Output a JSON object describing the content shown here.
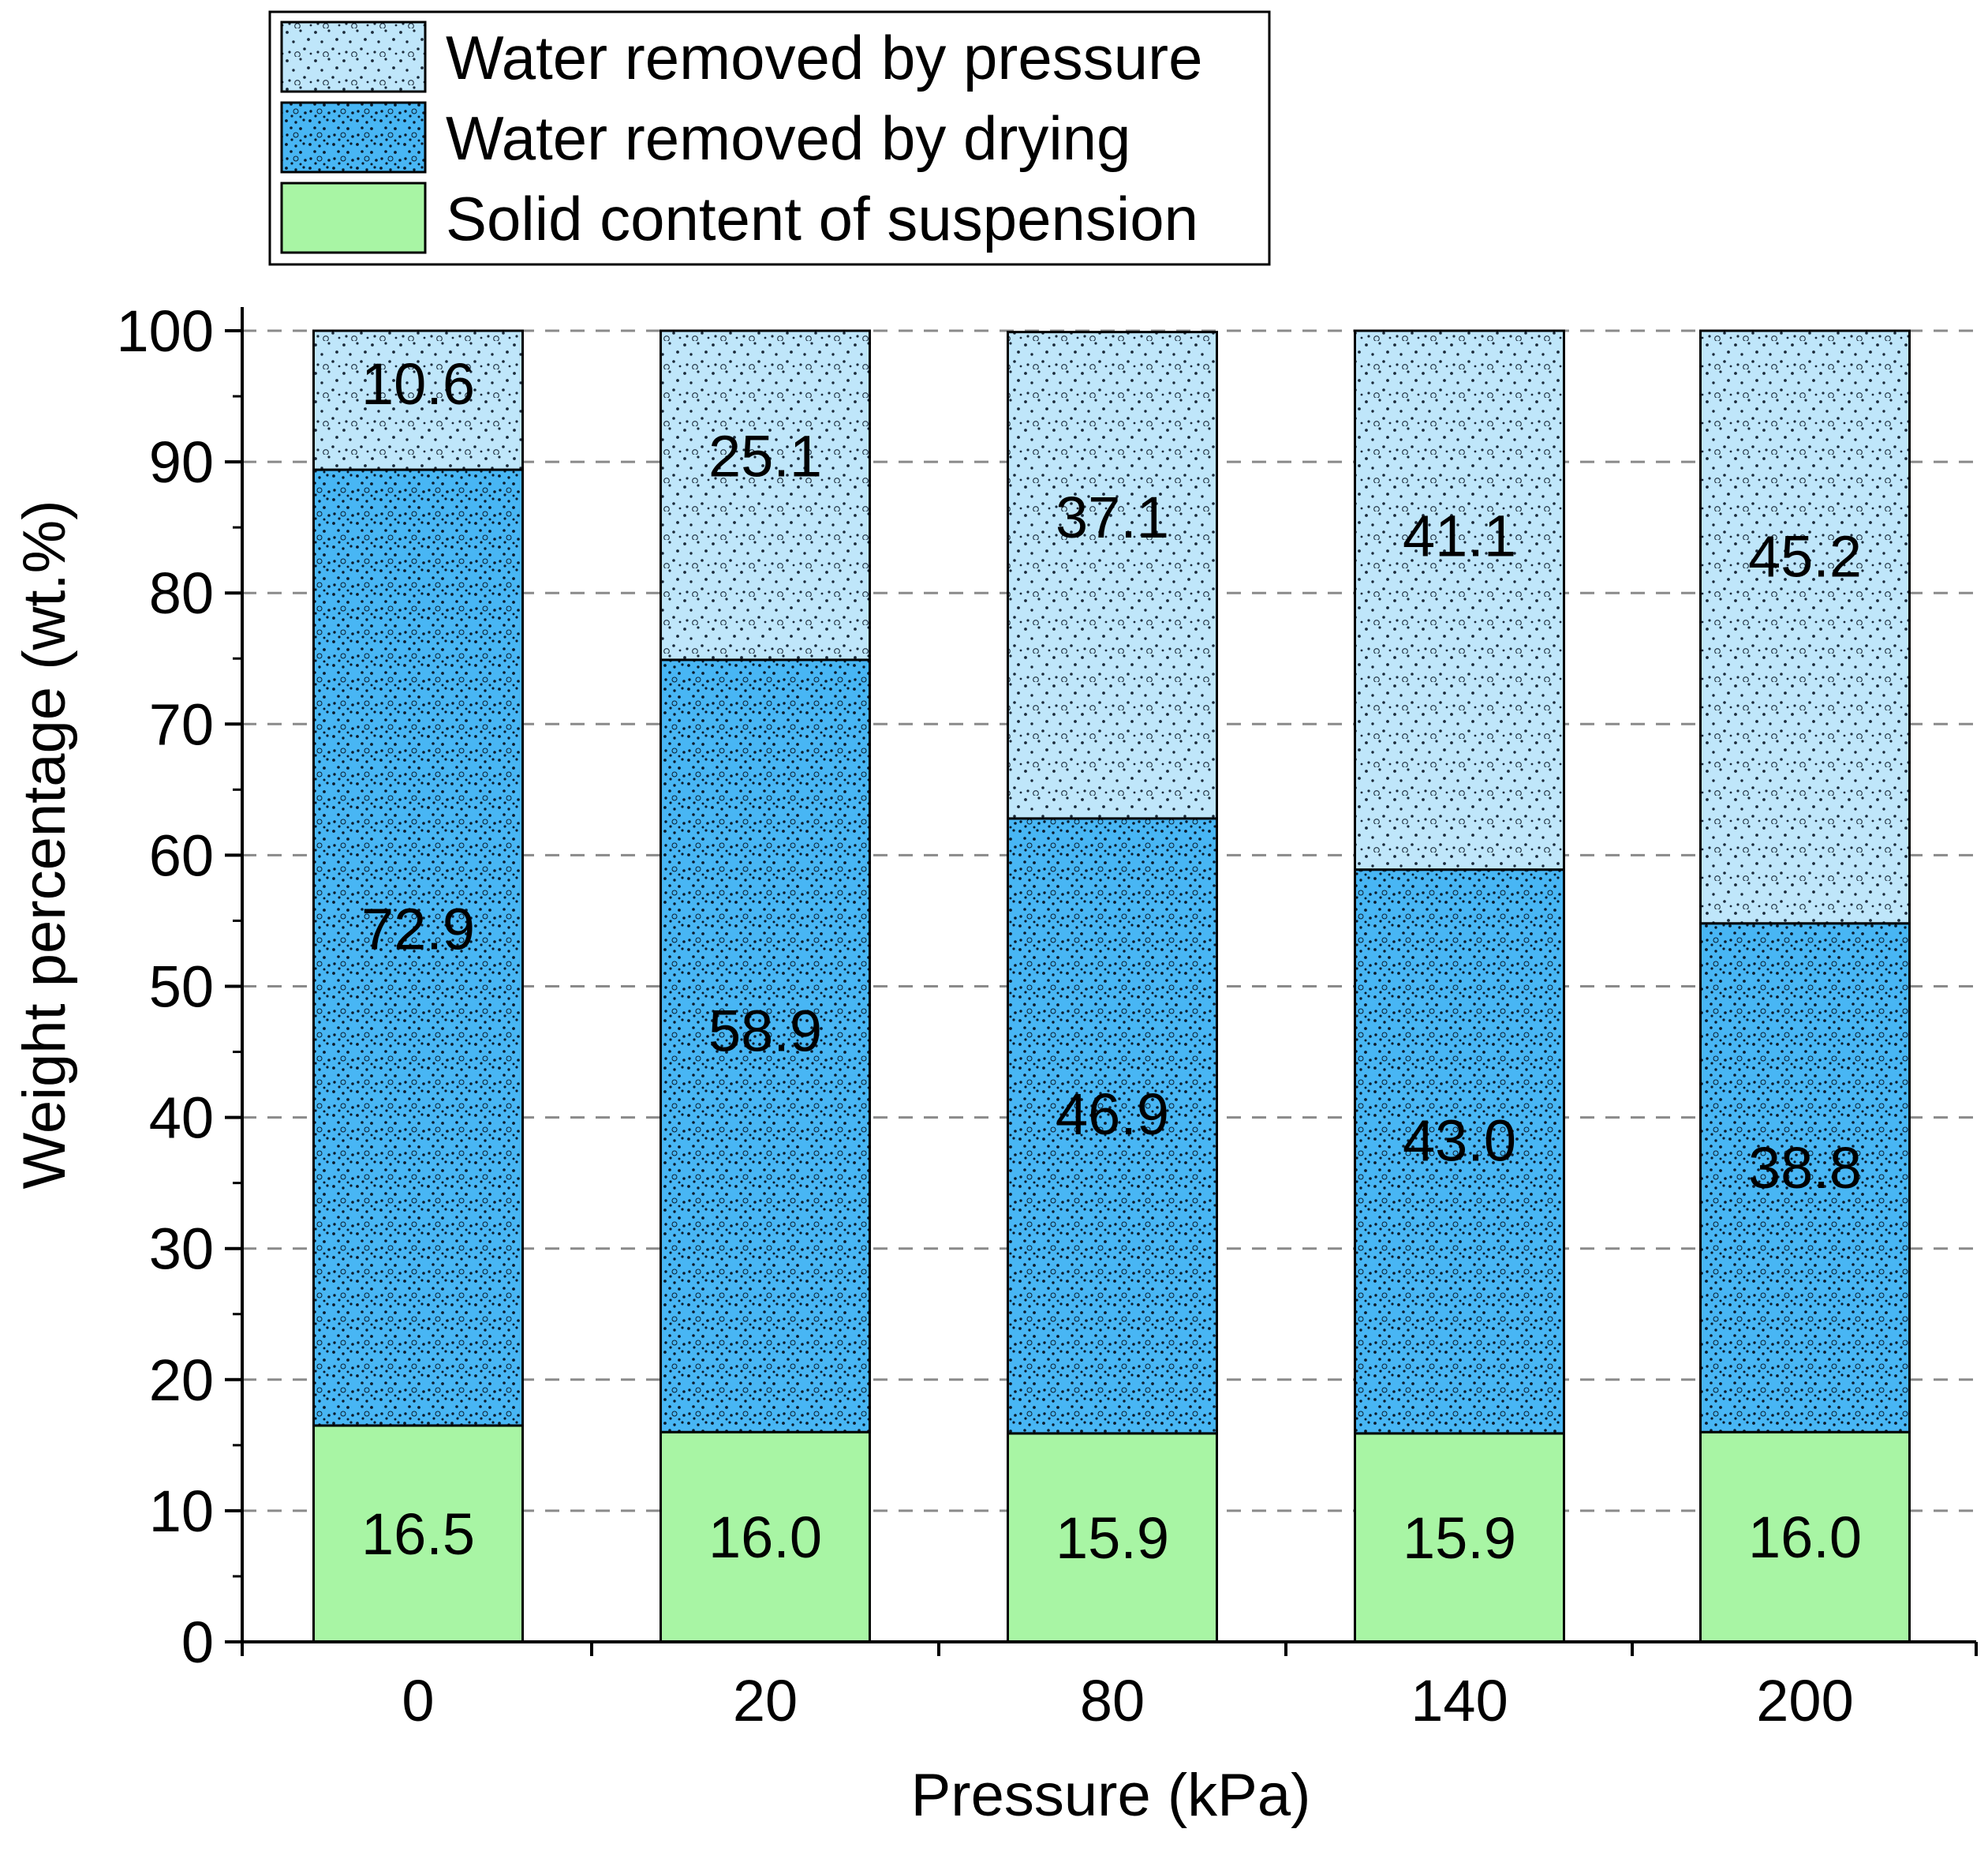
{
  "chart_data": {
    "type": "bar",
    "stacked": true,
    "title": "",
    "xlabel": "Pressure (kPa)",
    "ylabel": "Weight  percentage (wt.%)",
    "categories": [
      "0",
      "20",
      "80",
      "140",
      "200"
    ],
    "ylim": [
      0,
      100
    ],
    "yticks": [
      0,
      10,
      20,
      30,
      40,
      50,
      60,
      70,
      80,
      90,
      100
    ],
    "grid": "horizontal dashed",
    "legend_position": "top",
    "series": [
      {
        "name": "Solid content of suspension",
        "values": [
          16.5,
          16.0,
          15.9,
          15.9,
          16.0
        ],
        "labels": [
          "16.5",
          "16.0",
          "15.9",
          "15.9",
          "16.0"
        ],
        "color": "#a8f5a4",
        "pattern": "none"
      },
      {
        "name": "Water removed by drying",
        "values": [
          72.9,
          58.9,
          46.9,
          43.0,
          38.8
        ],
        "labels": [
          "72.9",
          "58.9",
          "46.9",
          "43.0",
          "38.8"
        ],
        "color": "#48b6f4",
        "pattern": "dense-dots"
      },
      {
        "name": "Water removed by pressure",
        "values": [
          10.6,
          25.1,
          37.1,
          41.1,
          45.2
        ],
        "labels": [
          "10.6",
          "25.1",
          "37.1",
          "41.1",
          "45.2"
        ],
        "color": "#bfe6fa",
        "pattern": "sparse-dots"
      }
    ],
    "legend_order": [
      "Water removed by pressure",
      "Water removed by drying",
      "Solid content of suspension"
    ]
  }
}
